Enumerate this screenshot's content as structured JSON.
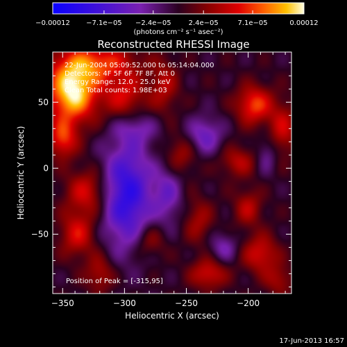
{
  "chart_data": {
    "type": "heatmap",
    "title": "Reconstructed RHESSI Image",
    "xlabel": "Heliocentric X (arcsec)",
    "ylabel": "Heliocentric Y (arcsec)",
    "xlim": [
      -358,
      -165
    ],
    "ylim": [
      -95,
      88
    ],
    "x_ticks": [
      -350,
      -300,
      -250,
      -200
    ],
    "x_tick_labels": [
      "−350",
      "−300",
      "−250",
      "−200"
    ],
    "y_ticks": [
      50,
      0,
      -50
    ],
    "y_tick_labels": [
      "50",
      "0",
      "−50"
    ],
    "colorbar": {
      "min": -0.00012,
      "max": 0.00012,
      "tick_values": [
        -0.00012,
        -7.1e-05,
        -2.4e-05,
        2.4e-05,
        7.1e-05,
        0.00012
      ],
      "tick_labels": [
        "−0.00012",
        "−7.1e−05",
        "−2.4e−05",
        "2.4e−05",
        "7.1e−05",
        "0.00012"
      ],
      "units": "(photons cm⁻² s⁻¹ asec⁻²)"
    },
    "info_lines": [
      "22-Jun-2004 05:09:52.000 to 05:14:04.000",
      "Detectors: 4F 5F 6F 7F 8F, Att 0",
      "Energy Range: 12.0 - 25.0 keV",
      "Clean    Total counts: 1.98E+03"
    ],
    "peak_label": "Position of Peak = [-315,95]",
    "peak": [
      -315,
      95
    ],
    "sources": [
      {
        "x": -342,
        "y": 58,
        "sx": 14,
        "sy": 16,
        "amp": 1.0
      },
      {
        "x": -322,
        "y": 80,
        "sx": 22,
        "sy": 10,
        "amp": 0.55
      },
      {
        "x": -350,
        "y": 22,
        "sx": 8,
        "sy": 10,
        "amp": 0.55
      },
      {
        "x": -300,
        "y": 55,
        "sx": 12,
        "sy": 12,
        "amp": 0.45
      },
      {
        "x": -268,
        "y": 62,
        "sx": 8,
        "sy": 14,
        "amp": 0.35
      },
      {
        "x": -195,
        "y": 48,
        "sx": 10,
        "sy": 10,
        "amp": 0.6
      },
      {
        "x": -172,
        "y": 30,
        "sx": 8,
        "sy": 14,
        "amp": 0.4
      },
      {
        "x": -208,
        "y": 5,
        "sx": 10,
        "sy": 8,
        "amp": 0.35
      },
      {
        "x": -255,
        "y": 10,
        "sx": 9,
        "sy": 10,
        "amp": 0.3
      },
      {
        "x": -330,
        "y": -18,
        "sx": 12,
        "sy": 12,
        "amp": 0.45
      },
      {
        "x": -338,
        "y": -50,
        "sx": 10,
        "sy": 12,
        "amp": 0.45
      },
      {
        "x": -320,
        "y": -80,
        "sx": 8,
        "sy": 10,
        "amp": 0.35
      },
      {
        "x": -280,
        "y": -55,
        "sx": 9,
        "sy": 9,
        "amp": 0.3
      },
      {
        "x": -240,
        "y": -40,
        "sx": 8,
        "sy": 12,
        "amp": 0.3
      },
      {
        "x": -232,
        "y": -80,
        "sx": 10,
        "sy": 8,
        "amp": 0.45
      },
      {
        "x": -200,
        "y": -30,
        "sx": 8,
        "sy": 10,
        "amp": 0.35
      },
      {
        "x": -190,
        "y": -65,
        "sx": 10,
        "sy": 10,
        "amp": 0.45
      },
      {
        "x": -175,
        "y": -85,
        "sx": 8,
        "sy": 8,
        "amp": 0.3
      },
      {
        "x": -298,
        "y": -20,
        "sx": 14,
        "sy": 28,
        "amp": -0.75
      },
      {
        "x": -235,
        "y": 25,
        "sx": 10,
        "sy": 10,
        "amp": -0.4
      },
      {
        "x": -265,
        "y": -20,
        "sx": 8,
        "sy": 16,
        "amp": -0.35
      },
      {
        "x": -220,
        "y": -60,
        "sx": 8,
        "sy": 8,
        "amp": -0.3
      },
      {
        "x": -290,
        "y": 30,
        "sx": 12,
        "sy": 8,
        "amp": -0.25
      },
      {
        "x": -185,
        "y": 10,
        "sx": 6,
        "sy": 10,
        "amp": -0.25
      }
    ]
  },
  "timestamp": "17-Jun-2013 16:57"
}
